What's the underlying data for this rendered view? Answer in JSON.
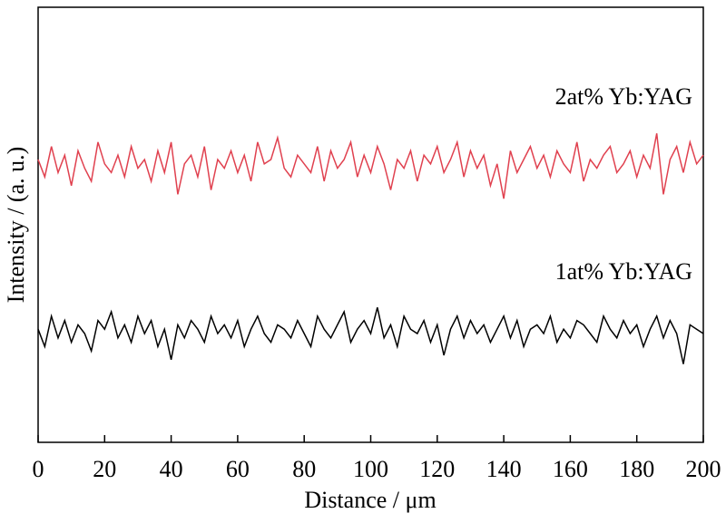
{
  "chart_data": {
    "type": "line",
    "x_label": "Distance / μm",
    "y_label": "Intensity / (a. u.)",
    "x": [
      0,
      2,
      4,
      6,
      8,
      10,
      12,
      14,
      16,
      18,
      20,
      22,
      24,
      26,
      28,
      30,
      32,
      34,
      36,
      38,
      40,
      42,
      44,
      46,
      48,
      50,
      52,
      54,
      56,
      58,
      60,
      62,
      64,
      66,
      68,
      70,
      72,
      74,
      76,
      78,
      80,
      82,
      84,
      86,
      88,
      90,
      92,
      94,
      96,
      98,
      100,
      102,
      104,
      106,
      108,
      110,
      112,
      114,
      116,
      118,
      120,
      122,
      124,
      126,
      128,
      130,
      132,
      134,
      136,
      138,
      140,
      142,
      144,
      146,
      148,
      150,
      152,
      154,
      156,
      158,
      160,
      162,
      164,
      166,
      168,
      170,
      172,
      174,
      176,
      178,
      180,
      182,
      184,
      186,
      188,
      190,
      192,
      194,
      196,
      198,
      200
    ],
    "series": [
      {
        "name": "2at% Yb:YAG",
        "color": "#e0414f",
        "values": [
          6.5,
          6.1,
          6.8,
          6.2,
          6.6,
          5.9,
          6.7,
          6.3,
          6.0,
          6.9,
          6.4,
          6.2,
          6.6,
          6.1,
          6.8,
          6.3,
          6.5,
          6.0,
          6.7,
          6.2,
          6.9,
          5.7,
          6.4,
          6.6,
          6.1,
          6.8,
          5.8,
          6.5,
          6.3,
          6.7,
          6.2,
          6.6,
          6.0,
          6.9,
          6.4,
          6.5,
          7.0,
          6.3,
          6.1,
          6.6,
          6.4,
          6.2,
          6.8,
          6.0,
          6.7,
          6.3,
          6.5,
          6.9,
          6.1,
          6.6,
          6.2,
          6.8,
          6.4,
          5.8,
          6.5,
          6.3,
          6.7,
          6.0,
          6.6,
          6.4,
          6.8,
          6.2,
          6.5,
          6.9,
          6.1,
          6.7,
          6.3,
          6.6,
          5.9,
          6.4,
          5.6,
          6.7,
          6.2,
          6.5,
          6.8,
          6.3,
          6.6,
          6.1,
          6.7,
          6.4,
          6.2,
          6.9,
          6.0,
          6.5,
          6.3,
          6.6,
          6.8,
          6.2,
          6.4,
          6.7,
          6.1,
          6.6,
          6.3,
          7.1,
          5.7,
          6.5,
          6.8,
          6.2,
          6.9,
          6.4,
          6.6
        ]
      },
      {
        "name": "1at% Yb:YAG",
        "color": "#000000",
        "values": [
          2.6,
          2.2,
          2.9,
          2.4,
          2.8,
          2.3,
          2.7,
          2.5,
          2.1,
          2.8,
          2.6,
          3.0,
          2.4,
          2.7,
          2.3,
          2.9,
          2.5,
          2.8,
          2.2,
          2.6,
          1.9,
          2.7,
          2.4,
          2.8,
          2.6,
          2.3,
          2.9,
          2.5,
          2.7,
          2.4,
          2.8,
          2.2,
          2.6,
          2.9,
          2.5,
          2.3,
          2.7,
          2.6,
          2.4,
          2.8,
          2.5,
          2.2,
          2.9,
          2.6,
          2.4,
          2.7,
          3.0,
          2.3,
          2.6,
          2.8,
          2.5,
          3.1,
          2.4,
          2.7,
          2.2,
          2.9,
          2.6,
          2.5,
          2.8,
          2.3,
          2.7,
          2.0,
          2.6,
          2.9,
          2.4,
          2.8,
          2.5,
          2.7,
          2.3,
          2.6,
          2.9,
          2.4,
          2.8,
          2.2,
          2.6,
          2.7,
          2.5,
          2.9,
          2.3,
          2.6,
          2.4,
          2.8,
          2.7,
          2.5,
          2.3,
          2.9,
          2.6,
          2.4,
          2.8,
          2.5,
          2.7,
          2.2,
          2.6,
          2.9,
          2.4,
          2.8,
          2.5,
          1.8,
          2.7,
          2.6,
          2.5
        ]
      }
    ],
    "xlim": [
      0,
      200
    ],
    "xticks": [
      0,
      20,
      40,
      60,
      80,
      100,
      120,
      140,
      160,
      180,
      200
    ],
    "ylim": [
      0,
      10
    ]
  }
}
